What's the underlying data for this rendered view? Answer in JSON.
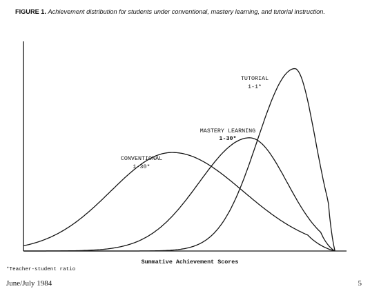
{
  "figure": {
    "caption_label": "FIGURE 1.",
    "caption_text": "Achievement distribution for students under conventional, mastery learning, and tutorial instruction."
  },
  "chart_data": {
    "type": "line",
    "xlabel": "Summative Achievement Scores",
    "ylabel": "",
    "series": [
      {
        "name": "CONVENTIONAL",
        "ratio": "1-30*",
        "mean": 2.3,
        "left_sd": 0.95,
        "right_sd": 1.1,
        "peak": 0.47
      },
      {
        "name": "MASTERY LEARNING",
        "ratio": "1-30*",
        "mean": 3.5,
        "left_sd": 0.78,
        "right_sd": 0.58,
        "peak": 0.54
      },
      {
        "name": "TUTORIAL",
        "ratio": "1-1*",
        "mean": 4.2,
        "left_sd": 0.58,
        "right_sd": 0.32,
        "peak": 0.87
      }
    ],
    "xlim": [
      0,
      5
    ],
    "ylim": [
      0,
      1
    ],
    "grid": false,
    "tick_labels": false
  },
  "footnote": "*Teacher-student ratio",
  "footer": {
    "issue": "June/July 1984",
    "page": "5"
  }
}
